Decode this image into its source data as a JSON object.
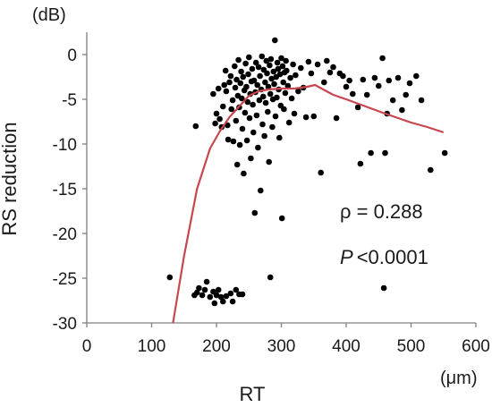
{
  "chart_data": {
    "type": "scatter",
    "xlabel": "RT",
    "ylabel": "RS reduction",
    "x_unit": "(μm)",
    "y_unit": "(dB)",
    "xlim": [
      0,
      600
    ],
    "ylim": [
      -30,
      0
    ],
    "xticks": [
      0,
      100,
      200,
      300,
      400,
      500,
      600
    ],
    "yticks": [
      0,
      -5,
      -10,
      -15,
      -20,
      -25,
      -30
    ],
    "grid": false,
    "annotations": {
      "rho": "ρ = 0.288",
      "p_italic": "P",
      "p_value": "<0.0001"
    },
    "colors": {
      "points": "#000000",
      "fit_line": "#c8464f"
    },
    "points": [
      [
        128,
        -24.9
      ],
      [
        166,
        -26.9
      ],
      [
        170,
        -26.6
      ],
      [
        173,
        -26.1
      ],
      [
        178,
        -26.9
      ],
      [
        182,
        -26.3
      ],
      [
        185,
        -25.4
      ],
      [
        190,
        -27.1
      ],
      [
        195,
        -26.5
      ],
      [
        197,
        -27.8
      ],
      [
        200,
        -26.9
      ],
      [
        203,
        -26.3
      ],
      [
        207,
        -27.1
      ],
      [
        210,
        -27.6
      ],
      [
        215,
        -27.0
      ],
      [
        222,
        -26.7
      ],
      [
        225,
        -27.6
      ],
      [
        230,
        -26.3
      ],
      [
        235,
        -26.8
      ],
      [
        240,
        -26.8
      ],
      [
        283,
        -24.9
      ],
      [
        458,
        -26.1
      ],
      [
        168,
        -8.0
      ],
      [
        195,
        -4.4
      ],
      [
        198,
        -7.7
      ],
      [
        200,
        -6.6
      ],
      [
        203,
        -3.8
      ],
      [
        205,
        -7.2
      ],
      [
        208,
        -8.1
      ],
      [
        210,
        -5.8
      ],
      [
        212,
        -3.4
      ],
      [
        214,
        -1.8
      ],
      [
        215,
        -4.1
      ],
      [
        217,
        -7.9
      ],
      [
        218,
        -9.5
      ],
      [
        220,
        -3.1
      ],
      [
        222,
        -2.4
      ],
      [
        223,
        -6.1
      ],
      [
        225,
        -5.1
      ],
      [
        226,
        -9.7
      ],
      [
        228,
        -1.3
      ],
      [
        229,
        -3.7
      ],
      [
        230,
        -7.4
      ],
      [
        231,
        -2.8
      ],
      [
        232,
        -12.3
      ],
      [
        233,
        -4.6
      ],
      [
        234,
        -0.6
      ],
      [
        235,
        -5.9
      ],
      [
        236,
        -10.1
      ],
      [
        237,
        -3.2
      ],
      [
        238,
        -1.9
      ],
      [
        239,
        -4.9
      ],
      [
        240,
        -8.3
      ],
      [
        241,
        -2.5
      ],
      [
        242,
        -13.3
      ],
      [
        243,
        -4.0
      ],
      [
        244,
        -6.5
      ],
      [
        245,
        -1.0
      ],
      [
        246,
        -3.6
      ],
      [
        247,
        -9.6
      ],
      [
        248,
        -5.3
      ],
      [
        249,
        -2.2
      ],
      [
        250,
        -0.3
      ],
      [
        251,
        -7.1
      ],
      [
        252,
        -4.4
      ],
      [
        253,
        -11.6
      ],
      [
        254,
        -3.0
      ],
      [
        255,
        -1.6
      ],
      [
        256,
        -5.6
      ],
      [
        257,
        -8.7
      ],
      [
        258,
        -2.9
      ],
      [
        259,
        -17.7
      ],
      [
        260,
        -4.2
      ],
      [
        261,
        -0.9
      ],
      [
        262,
        -6.8
      ],
      [
        263,
        -3.4
      ],
      [
        264,
        -10.4
      ],
      [
        265,
        -1.4
      ],
      [
        266,
        -5.1
      ],
      [
        267,
        -2.4
      ],
      [
        268,
        -15.2
      ],
      [
        269,
        -3.9
      ],
      [
        270,
        -0.2
      ],
      [
        271,
        -7.8
      ],
      [
        272,
        -4.7
      ],
      [
        273,
        -1.7
      ],
      [
        274,
        -9.1
      ],
      [
        275,
        -3.1
      ],
      [
        276,
        -5.4
      ],
      [
        277,
        -0.7
      ],
      [
        278,
        -2.1
      ],
      [
        279,
        -6.4
      ],
      [
        280,
        -3.6
      ],
      [
        281,
        -12.0
      ],
      [
        282,
        -1.2
      ],
      [
        283,
        -4.4
      ],
      [
        284,
        -0.5
      ],
      [
        285,
        -2.7
      ],
      [
        286,
        -8.1
      ],
      [
        287,
        -5.0
      ],
      [
        288,
        -1.9
      ],
      [
        289,
        -3.3
      ],
      [
        290,
        1.6
      ],
      [
        291,
        -6.9
      ],
      [
        292,
        -2.5
      ],
      [
        293,
        -4.8
      ],
      [
        294,
        -0.9
      ],
      [
        295,
        -1.6
      ],
      [
        296,
        -3.9
      ],
      [
        297,
        -9.3
      ],
      [
        298,
        -2.2
      ],
      [
        299,
        -5.7
      ],
      [
        300,
        -0.4
      ],
      [
        301,
        -18.3
      ],
      [
        302,
        -1.3
      ],
      [
        303,
        -3.1
      ],
      [
        304,
        -6.1
      ],
      [
        305,
        -2.0
      ],
      [
        306,
        -4.3
      ],
      [
        307,
        -0.7
      ],
      [
        308,
        -1.8
      ],
      [
        310,
        -3.5
      ],
      [
        312,
        -7.6
      ],
      [
        314,
        -2.6
      ],
      [
        316,
        -4.9
      ],
      [
        318,
        -1.1
      ],
      [
        320,
        -6.6
      ],
      [
        322,
        -2.3
      ],
      [
        326,
        -4.1
      ],
      [
        330,
        -1.5
      ],
      [
        334,
        -3.7
      ],
      [
        338,
        -7.0
      ],
      [
        342,
        -0.8
      ],
      [
        346,
        -2.1
      ],
      [
        350,
        -6.9
      ],
      [
        356,
        -1.1
      ],
      [
        361,
        -13.2
      ],
      [
        366,
        -3.1
      ],
      [
        370,
        -0.7
      ],
      [
        375,
        -2.0
      ],
      [
        380,
        -1.4
      ],
      [
        385,
        -7.1
      ],
      [
        390,
        -2.1
      ],
      [
        395,
        -2.4
      ],
      [
        400,
        -3.6
      ],
      [
        405,
        -2.9
      ],
      [
        410,
        -4.4
      ],
      [
        418,
        -5.9
      ],
      [
        422,
        -12.2
      ],
      [
        426,
        -2.8
      ],
      [
        432,
        -4.5
      ],
      [
        438,
        -11.0
      ],
      [
        444,
        -2.6
      ],
      [
        450,
        -3.5
      ],
      [
        456,
        -0.4
      ],
      [
        460,
        -11.0
      ],
      [
        463,
        -6.6
      ],
      [
        466,
        -2.9
      ],
      [
        472,
        -5.1
      ],
      [
        480,
        -2.6
      ],
      [
        486,
        -6.2
      ],
      [
        492,
        -4.5
      ],
      [
        498,
        -3.2
      ],
      [
        508,
        -2.4
      ],
      [
        516,
        -5.1
      ],
      [
        530,
        -12.9
      ],
      [
        552,
        -11.0
      ]
    ],
    "fit_curve": [
      [
        133,
        -30
      ],
      [
        150,
        -22.5
      ],
      [
        170,
        -15.0
      ],
      [
        190,
        -10.5
      ],
      [
        205,
        -8.6
      ],
      [
        220,
        -7.0
      ],
      [
        235,
        -5.8
      ],
      [
        250,
        -4.6
      ],
      [
        265,
        -4.1
      ],
      [
        280,
        -3.9
      ],
      [
        300,
        -3.8
      ],
      [
        320,
        -3.8
      ],
      [
        340,
        -3.6
      ],
      [
        352,
        -3.4
      ],
      [
        362,
        -3.8
      ],
      [
        380,
        -4.5
      ],
      [
        400,
        -5.0
      ],
      [
        430,
        -5.8
      ],
      [
        460,
        -6.6
      ],
      [
        500,
        -7.6
      ],
      [
        525,
        -8.1
      ],
      [
        550,
        -8.7
      ]
    ]
  }
}
